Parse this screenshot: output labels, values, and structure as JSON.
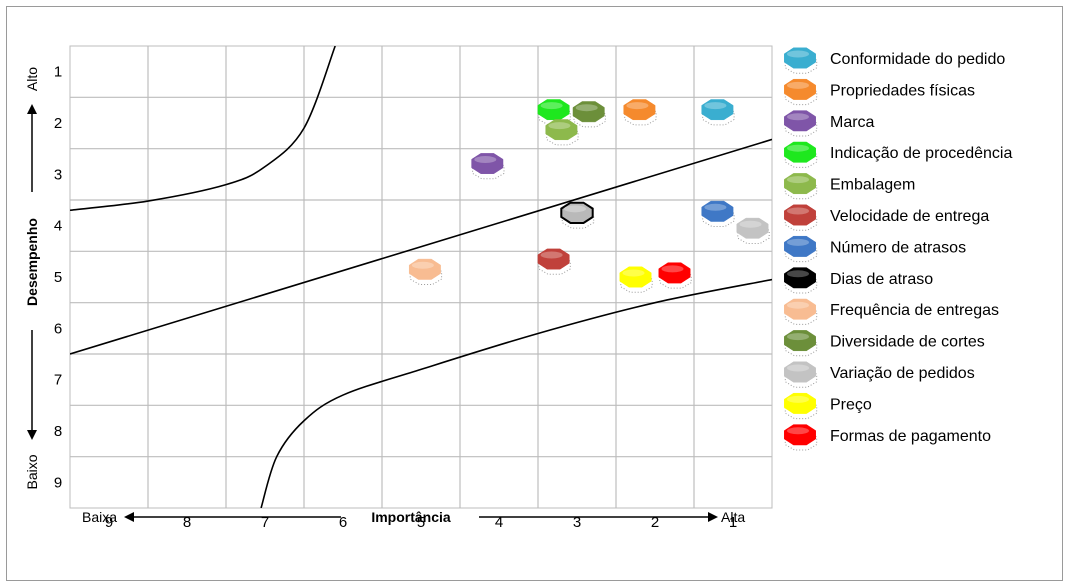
{
  "chart_data": {
    "type": "scatter",
    "x_axis": {
      "title": "Importância",
      "low_label": "Baixa",
      "high_label": "Alta",
      "ticks": [
        "9",
        "8",
        "7",
        "6",
        "5",
        "4",
        "3",
        "2",
        "1"
      ],
      "range": [
        9.5,
        0.5
      ],
      "reversed": true
    },
    "y_axis": {
      "title": "Desempenho",
      "top_label": "Alto",
      "bottom_label": "Baixo",
      "ticks": [
        "1",
        "2",
        "3",
        "4",
        "5",
        "6",
        "7",
        "8",
        "9"
      ],
      "range": [
        0.5,
        9.5
      ],
      "reversed": true
    },
    "grid": true,
    "legend_position": "right",
    "series": [
      {
        "name": "Conformidade do pedido",
        "color": "#3aaed0",
        "x": 1.2,
        "y": 1.74
      },
      {
        "name": "Propriedades físicas",
        "color": "#f58a2d",
        "x": 2.2,
        "y": 1.74
      },
      {
        "name": "Marca",
        "color": "#7f55a8",
        "x": 4.15,
        "y": 2.79
      },
      {
        "name": "Indicação de procedência",
        "color": "#1ee81e",
        "x": 3.3,
        "y": 1.74
      },
      {
        "name": "Embalagem",
        "color": "#8db94c",
        "x": 3.2,
        "y": 2.13
      },
      {
        "name": "Velocidade de entrega",
        "color": "#c0413b",
        "x": 3.3,
        "y": 4.65
      },
      {
        "name": "Número de atrasos",
        "color": "#3f78c6",
        "x": 1.2,
        "y": 3.72
      },
      {
        "name": "Dias de atraso",
        "color": "#b9b9b9",
        "x": 3.0,
        "y": 3.75
      },
      {
        "name": "Frequência de entregas",
        "color": "#f8bc92",
        "x": 4.95,
        "y": 4.85
      },
      {
        "name": "Diversidade de cortes",
        "color": "#6c8f3a",
        "x": 2.85,
        "y": 1.78
      },
      {
        "name": "Variação de pedidos",
        "color": "#c3c3c3",
        "x": 0.75,
        "y": 4.05
      },
      {
        "name": "Preço",
        "color": "#ffff00",
        "x": 2.25,
        "y": 5.0
      },
      {
        "name": "Formas de pagamento",
        "color": "#ff0000",
        "x": 1.75,
        "y": 4.92
      }
    ],
    "boundary_lines": [
      {
        "type": "curve",
        "points": [
          [
            9.5,
            3.7
          ],
          [
            8.5,
            3.52
          ],
          [
            7.5,
            3.2
          ],
          [
            7.0,
            2.85
          ],
          [
            6.5,
            2.1
          ],
          [
            6.1,
            0.5
          ]
        ]
      },
      {
        "type": "straight",
        "points": [
          [
            9.5,
            6.5
          ],
          [
            0.5,
            2.32
          ]
        ]
      },
      {
        "type": "curve",
        "points": [
          [
            7.05,
            9.5
          ],
          [
            6.85,
            8.5
          ],
          [
            6.5,
            7.8
          ],
          [
            6.0,
            7.3
          ],
          [
            5.0,
            6.8
          ],
          [
            3.5,
            6.1
          ],
          [
            2.0,
            5.5
          ],
          [
            0.5,
            5.05
          ]
        ]
      }
    ]
  }
}
